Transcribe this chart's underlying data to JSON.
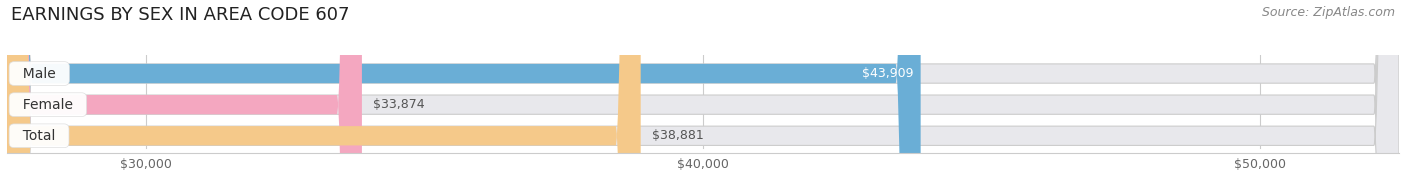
{
  "title": "EARNINGS BY SEX IN AREA CODE 607",
  "source": "Source: ZipAtlas.com",
  "categories": [
    "Male",
    "Female",
    "Total"
  ],
  "values": [
    43909,
    33874,
    38881
  ],
  "bar_colors": [
    "#6aaed6",
    "#f4a7c0",
    "#f5c98a"
  ],
  "bar_bg_color": "#e8e8ec",
  "xlim_min": 27500,
  "xlim_max": 52500,
  "xticks": [
    30000,
    40000,
    50000
  ],
  "xtick_labels": [
    "$30,000",
    "$40,000",
    "$50,000"
  ],
  "title_fontsize": 13,
  "source_fontsize": 9,
  "bar_label_fontsize": 9,
  "cat_label_fontsize": 10,
  "tick_fontsize": 9,
  "fig_bg_color": "#ffffff",
  "bar_height": 0.62,
  "value_label_colors": [
    "#ffffff",
    "#555555",
    "#555555"
  ],
  "value_label_inside": [
    true,
    false,
    false
  ]
}
